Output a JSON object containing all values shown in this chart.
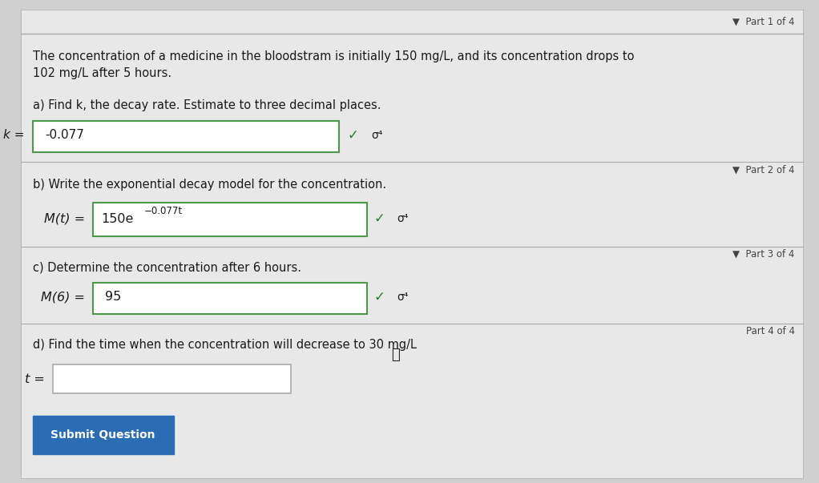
{
  "bg_color": "#d0d0d0",
  "panel_color": "#e8e8e8",
  "white": "#ffffff",
  "dark_text": "#1a1a1a",
  "medium_text": "#333333",
  "light_border": "#aaaaaa",
  "green_border": "#4a9a4a",
  "blue_btn": "#2a6db5",
  "blue_btn_text": "#ffffff",
  "arrow_color": "#555555",
  "part_label_color": "#444444",
  "problem_text": "The concentration of a medicine in the bloodstram is initially 150 mg/L, and its concentration drops to\n102 mg/L after 5 hours.",
  "part1_label": "▼  Part 1 of 4",
  "part2_label": "▼  Part 2 of 4",
  "part3_label": "▼  Part 3 of 4",
  "part4_label": "Part 4 of 4",
  "q_a": "a) Find k, the decay rate. Estimate to three decimal places.",
  "q_b": "b) Write the exponential decay model for the concentration.",
  "q_c": "c) Determine the concentration after 6 hours.",
  "q_d": "d) Find the time when the concentration will decrease to 30 mg/L",
  "ans_a_prefix": "k = ",
  "ans_a": "-0.077",
  "ans_b_prefix": "M(t) = ",
  "ans_b": "150e",
  "ans_b_exp": "−0.077t",
  "ans_c_prefix": "M(6) = ",
  "ans_c": "95",
  "ans_d_prefix": "t = ",
  "submit_text": "Submit Question"
}
